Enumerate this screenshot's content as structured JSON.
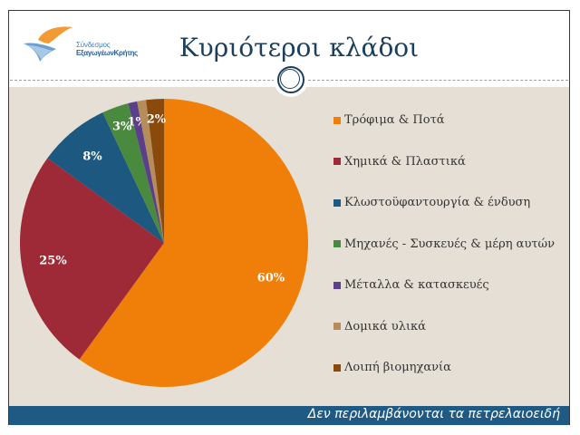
{
  "header": {
    "logo_line1": "Σύνδεσμος",
    "logo_line2": "ΕξαγωγέωνΚρήτης",
    "title": "Κυριότεροι κλάδοι"
  },
  "footer": {
    "note": "Δεν περιλαμβάνονται τα πετρελαιοειδή"
  },
  "colors": {
    "background_band": "#e5dfd5",
    "title": "#1b3f5c",
    "footer_bar": "#1f5a85"
  },
  "chart_data": {
    "type": "pie",
    "title": "Κυριότεροι κλάδοι",
    "categories": [
      "Τρόφιμα & Ποτά",
      "Χημικά & Πλαστικά",
      "Κλωστοϋφαντουργία & ένδυση",
      "Μηχανές - Συσκευές & μέρη αυτών",
      "Μέταλλα & κατασκευές",
      "Δομικά υλικά",
      "Λοιπή βιομηχανία"
    ],
    "values": [
      60,
      25,
      8,
      3,
      1,
      1,
      2
    ],
    "labels": [
      "60%",
      "25%",
      "8%",
      "3%",
      "1%",
      "",
      "2%"
    ],
    "colors": [
      "#f07f09",
      "#9e2a37",
      "#1c5880",
      "#4a8a3e",
      "#5b3f8a",
      "#b58d5a",
      "#8a4a0c"
    ],
    "start_angle_deg": 0,
    "direction": "clockwise",
    "legend_position": "right",
    "annotation": "Δεν περιλαμβάνονται τα πετρελαιοειδή"
  }
}
